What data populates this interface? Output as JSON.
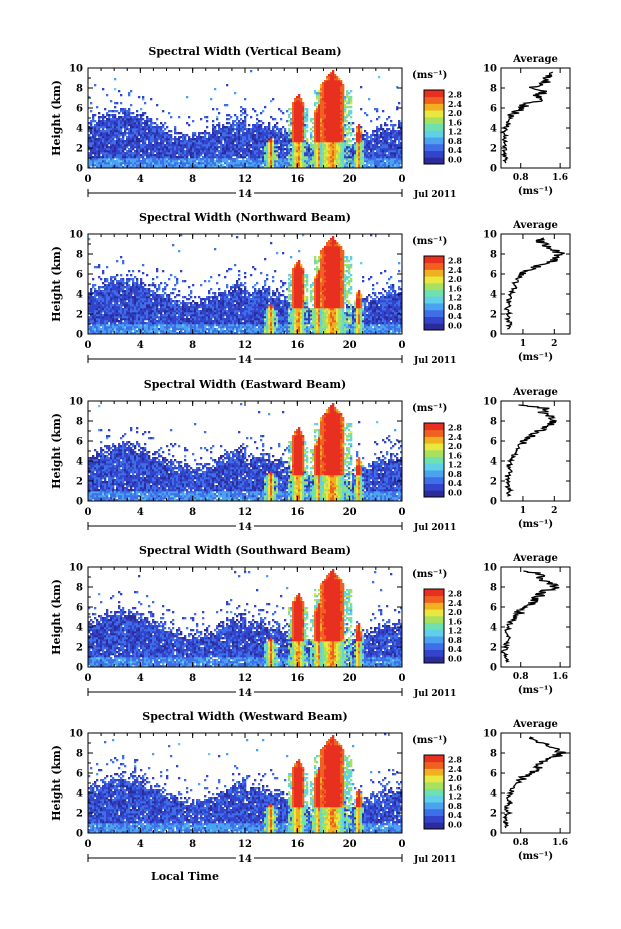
{
  "colors": {
    "scale": [
      "#2b2b9a",
      "#3344cc",
      "#3f6fe8",
      "#4ba3f0",
      "#5fd0e8",
      "#6fe0b0",
      "#a8e060",
      "#e8e840",
      "#f0b020",
      "#f06020",
      "#e83020"
    ],
    "line": "#000000"
  },
  "main_xlabel": "Local Time",
  "date_label": "Jul 2011",
  "day_label": "14",
  "unit_label": "(ms⁻¹)",
  "avg_xlabel": "(ms⁻¹)",
  "chart_data": [
    {
      "type": "heatmap",
      "title": "Spectral Width (Vertical Beam)",
      "ylabel": "Height (km)",
      "x_ticks": [
        "0",
        "4",
        "8",
        "12",
        "16",
        "20",
        "0"
      ],
      "y_ticks": [
        "0",
        "2",
        "4",
        "6",
        "8",
        "10"
      ],
      "xlim": [
        0,
        24
      ],
      "ylim": [
        0,
        10
      ],
      "colorbar_ticks": [
        "0.0",
        "0.4",
        "0.8",
        "1.2",
        "1.6",
        "2.0",
        "2.4",
        "2.8"
      ],
      "clim": [
        0,
        2.8
      ],
      "average": {
        "title": "Average",
        "ticks": [
          "0.8",
          "1.6"
        ],
        "xlim": [
          0.4,
          1.8
        ],
        "x": [
          1.5,
          1.3,
          1.4,
          1.2,
          1.0,
          1.3,
          1.1,
          1.3,
          0.9,
          0.8,
          0.7,
          0.6,
          0.55,
          0.5,
          0.45,
          0.5,
          0.45,
          0.5,
          0.45,
          0.5,
          0.5
        ],
        "y": [
          9.6,
          9.2,
          8.8,
          8.4,
          8.0,
          7.6,
          7.2,
          6.8,
          6.4,
          6.0,
          5.6,
          5.0,
          4.5,
          4.0,
          3.5,
          3.0,
          2.5,
          2.0,
          1.5,
          1.0,
          0.5
        ]
      }
    },
    {
      "type": "heatmap",
      "title": "Spectral Width (Northward Beam)",
      "ylabel": "Height (km)",
      "x_ticks": [
        "0",
        "4",
        "8",
        "12",
        "16",
        "20",
        "0"
      ],
      "y_ticks": [
        "0",
        "2",
        "4",
        "6",
        "8",
        "10"
      ],
      "xlim": [
        0,
        24
      ],
      "ylim": [
        0,
        10
      ],
      "colorbar_ticks": [
        "0.0",
        "0.4",
        "0.8",
        "1.2",
        "1.6",
        "2.0",
        "2.4",
        "2.8"
      ],
      "clim": [
        0,
        2.8
      ],
      "average": {
        "title": "Average",
        "ticks": [
          "1",
          "2"
        ],
        "xlim": [
          0.3,
          2.5
        ],
        "x": [
          1.5,
          1.6,
          1.7,
          2.0,
          2.2,
          2.1,
          1.9,
          1.5,
          1.2,
          1.0,
          0.9,
          0.8,
          0.7,
          0.6,
          0.55,
          0.6,
          0.5,
          0.55,
          0.5,
          0.6,
          0.5
        ],
        "y": [
          9.6,
          9.2,
          8.8,
          8.4,
          8.0,
          7.6,
          7.2,
          6.8,
          6.4,
          6.0,
          5.6,
          5.0,
          4.5,
          4.0,
          3.5,
          3.0,
          2.5,
          2.0,
          1.5,
          1.0,
          0.5
        ]
      }
    },
    {
      "type": "heatmap",
      "title": "Spectral Width (Eastward Beam)",
      "ylabel": "Height (km)",
      "x_ticks": [
        "0",
        "4",
        "8",
        "12",
        "16",
        "20",
        "0"
      ],
      "y_ticks": [
        "0",
        "2",
        "4",
        "6",
        "8",
        "10"
      ],
      "xlim": [
        0,
        24
      ],
      "ylim": [
        0,
        10
      ],
      "colorbar_ticks": [
        "0.0",
        "0.4",
        "0.8",
        "1.2",
        "1.6",
        "2.0",
        "2.4",
        "2.8"
      ],
      "clim": [
        0,
        2.8
      ],
      "average": {
        "title": "Average",
        "ticks": [
          "1",
          "2"
        ],
        "xlim": [
          0.3,
          2.5
        ],
        "x": [
          1.0,
          1.8,
          1.6,
          1.9,
          2.0,
          1.8,
          1.6,
          1.3,
          1.2,
          1.0,
          0.9,
          0.8,
          0.7,
          0.6,
          0.55,
          0.6,
          0.5,
          0.55,
          0.5,
          0.6,
          0.5
        ],
        "y": [
          9.6,
          9.2,
          8.8,
          8.4,
          8.0,
          7.6,
          7.2,
          6.8,
          6.4,
          6.0,
          5.6,
          5.0,
          4.5,
          4.0,
          3.5,
          3.0,
          2.5,
          2.0,
          1.5,
          1.0,
          0.5
        ]
      }
    },
    {
      "type": "heatmap",
      "title": "Spectral Width (Southward Beam)",
      "ylabel": "Height (km)",
      "x_ticks": [
        "0",
        "4",
        "8",
        "12",
        "16",
        "20",
        "0"
      ],
      "y_ticks": [
        "0",
        "2",
        "4",
        "6",
        "8",
        "10"
      ],
      "xlim": [
        0,
        24
      ],
      "ylim": [
        0,
        10
      ],
      "colorbar_ticks": [
        "0.0",
        "0.4",
        "0.8",
        "1.2",
        "1.6",
        "2.0",
        "2.4",
        "2.8"
      ],
      "clim": [
        0,
        2.8
      ],
      "average": {
        "title": "Average",
        "ticks": [
          "0.8",
          "1.6"
        ],
        "xlim": [
          0.4,
          1.8
        ],
        "x": [
          0.9,
          1.3,
          1.2,
          1.4,
          1.5,
          1.3,
          1.2,
          1.1,
          1.0,
          0.9,
          0.8,
          0.7,
          0.6,
          0.55,
          0.5,
          0.55,
          0.5,
          0.5,
          0.45,
          0.5,
          0.5
        ],
        "y": [
          9.6,
          9.2,
          8.8,
          8.4,
          8.0,
          7.6,
          7.2,
          6.8,
          6.4,
          6.0,
          5.6,
          5.0,
          4.5,
          4.0,
          3.5,
          3.0,
          2.5,
          2.0,
          1.5,
          1.0,
          0.5
        ]
      }
    },
    {
      "type": "heatmap",
      "title": "Spectral Width (Westward Beam)",
      "ylabel": "Height (km)",
      "x_ticks": [
        "0",
        "4",
        "8",
        "12",
        "16",
        "20",
        "0"
      ],
      "y_ticks": [
        "0",
        "2",
        "4",
        "6",
        "8",
        "10"
      ],
      "xlim": [
        0,
        24
      ],
      "ylim": [
        0,
        10
      ],
      "colorbar_ticks": [
        "0.0",
        "0.4",
        "0.8",
        "1.2",
        "1.6",
        "2.0",
        "2.4",
        "2.8"
      ],
      "clim": [
        0,
        2.8
      ],
      "average": {
        "title": "Average",
        "ticks": [
          "0.8",
          "1.6"
        ],
        "xlim": [
          0.4,
          1.8
        ],
        "x": [
          1.0,
          1.2,
          1.3,
          1.5,
          1.6,
          1.5,
          1.3,
          1.2,
          1.1,
          1.0,
          0.85,
          0.75,
          0.65,
          0.6,
          0.55,
          0.6,
          0.5,
          0.55,
          0.5,
          0.5,
          0.5
        ],
        "y": [
          9.6,
          9.2,
          8.8,
          8.4,
          8.0,
          7.6,
          7.2,
          6.8,
          6.4,
          6.0,
          5.6,
          5.0,
          4.5,
          4.0,
          3.5,
          3.0,
          2.5,
          2.0,
          1.5,
          1.0,
          0.5
        ]
      }
    }
  ]
}
